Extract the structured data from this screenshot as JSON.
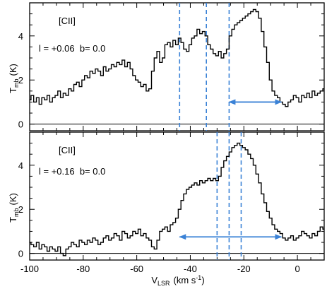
{
  "chart_data": [
    {
      "type": "line",
      "step": true,
      "panel": "top",
      "label": "[CII]",
      "coords": "l = +0.06  b= 0.0",
      "ylabel": "T",
      "ylabel_sub": "mb",
      "ylabel_unit": "(K)",
      "xlim": [
        -100,
        10
      ],
      "ylim": [
        -0.3,
        5.5
      ],
      "yticks": [
        0,
        2,
        4
      ],
      "ytick_labels": [
        "0",
        "2",
        "4"
      ],
      "zero_line": true,
      "vlines": [
        -44,
        -34,
        -25.5
      ],
      "arrow": {
        "from": -25.5,
        "to": -6,
        "y": 1.0,
        "double_headed": true
      },
      "series": [
        {
          "x": [
            -100,
            -99,
            -98,
            -97,
            -96,
            -95,
            -94,
            -93,
            -92,
            -91,
            -90,
            -89,
            -88,
            -87,
            -86,
            -85,
            -84,
            -83,
            -82,
            -81,
            -80,
            -79,
            -78,
            -77,
            -76,
            -75,
            -74,
            -73,
            -72,
            -71,
            -70,
            -69,
            -68,
            -67,
            -66,
            -65,
            -64,
            -63,
            -62,
            -61,
            -60,
            -59,
            -58,
            -57,
            -56,
            -55,
            -54,
            -53,
            -52,
            -51,
            -50,
            -49,
            -48,
            -47,
            -46,
            -45,
            -44,
            -43,
            -42,
            -41,
            -40,
            -39,
            -38,
            -37,
            -36,
            -35,
            -34,
            -33,
            -32,
            -31,
            -30,
            -29,
            -28,
            -27,
            -26,
            -25,
            -24,
            -23,
            -22,
            -21,
            -20,
            -19,
            -18,
            -17,
            -16,
            -15,
            -14,
            -13,
            -12,
            -11,
            -10,
            -9,
            -8,
            -7,
            -6,
            -5,
            -4,
            -3,
            -2,
            -1,
            0,
            1,
            2,
            3,
            4,
            5,
            6,
            7,
            8,
            9,
            10
          ],
          "y": [
            1.1,
            1.3,
            1.0,
            1.2,
            0.9,
            1.2,
            1.1,
            1.3,
            1.0,
            1.2,
            1.3,
            1.5,
            1.2,
            1.4,
            1.3,
            1.6,
            1.5,
            1.8,
            1.9,
            1.7,
            2.0,
            2.2,
            2.1,
            2.4,
            2.3,
            2.5,
            2.4,
            2.2,
            2.6,
            2.4,
            2.5,
            2.7,
            2.6,
            2.8,
            2.7,
            2.9,
            2.6,
            2.8,
            2.5,
            2.2,
            2.0,
            1.9,
            1.7,
            1.8,
            1.5,
            1.6,
            2.4,
            3.0,
            3.3,
            2.8,
            3.0,
            3.6,
            3.7,
            3.5,
            3.8,
            3.6,
            3.9,
            3.7,
            3.4,
            3.3,
            3.6,
            3.9,
            4.0,
            4.3,
            4.1,
            4.2,
            4.0,
            3.6,
            3.4,
            3.2,
            3.1,
            3.3,
            3.0,
            3.2,
            3.4,
            4.0,
            4.3,
            4.5,
            4.6,
            4.7,
            4.8,
            4.9,
            5.0,
            5.1,
            5.2,
            5.1,
            4.8,
            4.2,
            3.5,
            2.8,
            2.0,
            1.5,
            1.3,
            1.2,
            1.0,
            0.9,
            0.8,
            1.0,
            1.1,
            1.3,
            1.2,
            1.0,
            1.3,
            1.2,
            1.4,
            1.2,
            1.5,
            1.3,
            1.4,
            1.5,
            1.6
          ]
        }
      ]
    },
    {
      "type": "line",
      "step": true,
      "panel": "bottom",
      "label": "[CII]",
      "coords": "l = +0.16  b= 0.0",
      "ylabel": "T",
      "ylabel_sub": "mb",
      "ylabel_unit": "(K)",
      "xlabel": "V",
      "xlabel_sub": "LSR",
      "xlabel_unit": "(km s",
      "xlabel_sup": "-1",
      "xlabel_close": ")",
      "xlim": [
        -100,
        10
      ],
      "ylim": [
        -0.3,
        5.5
      ],
      "xticks": [
        -100,
        -80,
        -60,
        -40,
        -20,
        0
      ],
      "xtick_labels": [
        "-100",
        "-80",
        "-60",
        "-40",
        "-20",
        "0"
      ],
      "yticks": [
        0,
        2,
        4
      ],
      "ytick_labels": [
        "0",
        "2",
        "4"
      ],
      "zero_line": true,
      "vlines": [
        -30,
        -25.5,
        -21
      ],
      "arrow": {
        "from": -44,
        "to": -6,
        "y": 0.75,
        "double_headed": true
      },
      "series": [
        {
          "x": [
            -100,
            -99,
            -98,
            -97,
            -96,
            -95,
            -94,
            -93,
            -92,
            -91,
            -90,
            -89,
            -88,
            -87,
            -86,
            -85,
            -84,
            -83,
            -82,
            -81,
            -80,
            -79,
            -78,
            -77,
            -76,
            -75,
            -74,
            -73,
            -72,
            -71,
            -70,
            -69,
            -68,
            -67,
            -66,
            -65,
            -64,
            -63,
            -62,
            -61,
            -60,
            -59,
            -58,
            -57,
            -56,
            -55,
            -54,
            -53,
            -52,
            -51,
            -50,
            -49,
            -48,
            -47,
            -46,
            -45,
            -44,
            -43,
            -42,
            -41,
            -40,
            -39,
            -38,
            -37,
            -36,
            -35,
            -34,
            -33,
            -32,
            -31,
            -30,
            -29,
            -28,
            -27,
            -26,
            -25,
            -24,
            -23,
            -22,
            -21,
            -20,
            -19,
            -18,
            -17,
            -16,
            -15,
            -14,
            -13,
            -12,
            -11,
            -10,
            -9,
            -8,
            -7,
            -6,
            -5,
            -4,
            -3,
            -2,
            -1,
            0,
            1,
            2,
            3,
            4,
            5,
            6,
            7,
            8,
            9,
            10
          ],
          "y": [
            0.5,
            0.4,
            0.3,
            0.5,
            0.2,
            0.4,
            0.3,
            0.1,
            0.3,
            0.2,
            0.1,
            0.3,
            0.0,
            -0.1,
            0.2,
            0.3,
            0.5,
            0.4,
            0.3,
            0.6,
            0.5,
            0.4,
            0.6,
            0.5,
            0.7,
            0.6,
            0.4,
            0.5,
            0.7,
            0.8,
            0.6,
            0.7,
            0.9,
            0.8,
            0.6,
            1.0,
            0.9,
            0.7,
            0.8,
            1.0,
            0.9,
            1.1,
            0.8,
            0.9,
            0.7,
            0.6,
            0.3,
            0.2,
            0.6,
            1.0,
            1.1,
            1.2,
            1.0,
            1.3,
            1.4,
            1.6,
            2.0,
            2.4,
            2.7,
            2.9,
            3.0,
            3.1,
            3.2,
            3.1,
            3.3,
            3.2,
            3.3,
            3.4,
            3.3,
            3.4,
            3.3,
            3.5,
            3.9,
            4.2,
            4.4,
            4.6,
            4.8,
            4.9,
            5.0,
            4.9,
            4.8,
            4.7,
            4.5,
            4.3,
            4.0,
            3.6,
            3.2,
            2.7,
            2.3,
            1.9,
            1.6,
            1.3,
            1.1,
            1.0,
            0.9,
            0.7,
            0.6,
            0.7,
            0.8,
            0.6,
            0.7,
            0.8,
            1.0,
            0.9,
            0.8,
            0.7,
            0.9,
            0.8,
            1.0,
            1.2,
            1.1
          ]
        }
      ]
    }
  ],
  "colors": {
    "spectrum": "#000000",
    "marker": "#3b82d6",
    "axes": "#000000"
  }
}
